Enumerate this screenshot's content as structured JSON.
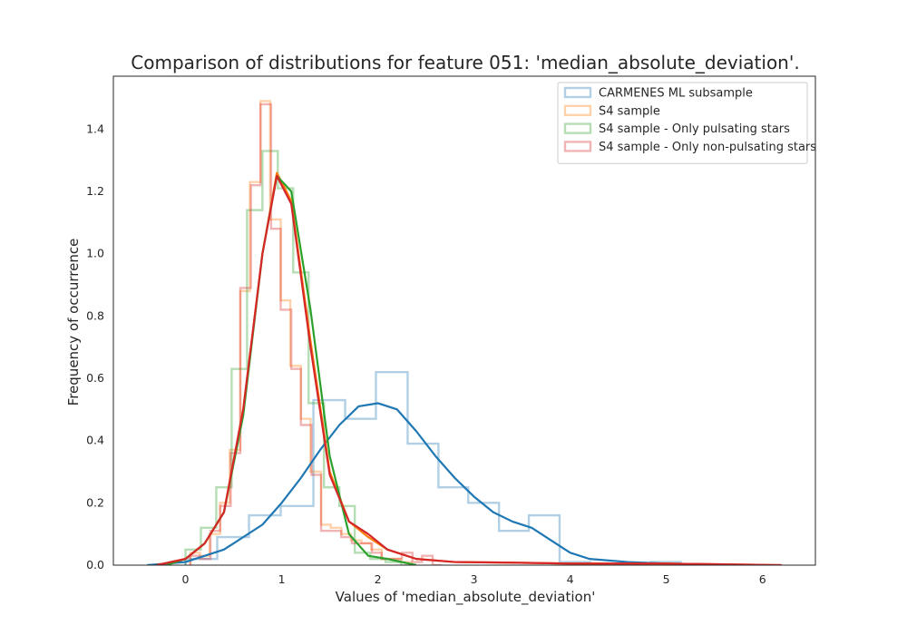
{
  "chart_data": {
    "type": "histogram+kde",
    "title": "Comparison of distributions for feature 051: 'median_absolute_deviation'.",
    "xlabel": "Values of 'median_absolute_deviation'",
    "ylabel": "Frequency of occurrence",
    "xlim": [
      -0.75,
      6.55
    ],
    "ylim": [
      0,
      1.57
    ],
    "xticks": [
      0,
      1,
      2,
      3,
      4,
      5,
      6
    ],
    "yticks": [
      0.0,
      0.2,
      0.4,
      0.6,
      0.8,
      1.0,
      1.2,
      1.4
    ],
    "grid": false,
    "legend_position": "top-right",
    "series": [
      {
        "name": "CARMENES ML subsample",
        "color": "#1f77b4",
        "hist": {
          "edges": [
            0.0,
            0.33,
            0.66,
            0.99,
            1.33,
            1.66,
            1.98,
            2.31,
            2.63,
            2.94,
            3.26,
            3.57,
            3.89,
            4.21,
            4.52,
            4.84,
            5.15
          ],
          "heights": [
            0.02,
            0.09,
            0.16,
            0.19,
            0.53,
            0.47,
            0.62,
            0.39,
            0.25,
            0.2,
            0.11,
            0.16,
            0.01,
            0.0,
            0.0,
            0.01
          ]
        },
        "kde": {
          "x": [
            -0.4,
            0.0,
            0.4,
            0.8,
            1.0,
            1.2,
            1.4,
            1.6,
            1.8,
            2.0,
            2.2,
            2.4,
            2.6,
            2.8,
            3.0,
            3.2,
            3.4,
            3.6,
            3.8,
            4.0,
            4.2,
            4.6,
            5.0,
            5.4
          ],
          "y": [
            0.0,
            0.01,
            0.05,
            0.13,
            0.2,
            0.28,
            0.37,
            0.45,
            0.51,
            0.52,
            0.5,
            0.43,
            0.35,
            0.28,
            0.22,
            0.17,
            0.14,
            0.12,
            0.08,
            0.04,
            0.02,
            0.01,
            0.005,
            0.0
          ]
        }
      },
      {
        "name": "S4 sample",
        "color": "#ff7f0e",
        "hist": {
          "edges": [
            0.05,
            0.15,
            0.25,
            0.36,
            0.46,
            0.57,
            0.67,
            0.78,
            0.88,
            0.99,
            1.09,
            1.2,
            1.3,
            1.41,
            1.51,
            1.62,
            1.72,
            1.83,
            1.93,
            2.04,
            2.14,
            2.24,
            2.35
          ],
          "heights": [
            0.04,
            0.03,
            0.1,
            0.2,
            0.37,
            0.88,
            1.23,
            1.49,
            1.11,
            0.85,
            0.64,
            0.47,
            0.3,
            0.13,
            0.12,
            0.1,
            0.08,
            0.07,
            0.05,
            0.02,
            0.02,
            0.01
          ]
        },
        "kde": {
          "x": [
            -0.3,
            0.0,
            0.2,
            0.4,
            0.6,
            0.8,
            0.95,
            1.1,
            1.3,
            1.5,
            1.7,
            1.9,
            2.1,
            2.4,
            2.8,
            3.4,
            4.0,
            5.0,
            6.2
          ],
          "y": [
            0.0,
            0.02,
            0.07,
            0.17,
            0.5,
            1.0,
            1.26,
            1.17,
            0.72,
            0.3,
            0.14,
            0.09,
            0.05,
            0.02,
            0.01,
            0.008,
            0.005,
            0.005,
            0.0
          ]
        }
      },
      {
        "name": "S4 sample - Only pulsating stars",
        "color": "#2ca02c",
        "hist": {
          "edges": [
            0.0,
            0.16,
            0.32,
            0.48,
            0.64,
            0.8,
            0.96,
            1.12,
            1.28,
            1.44,
            1.6,
            1.76,
            1.92,
            2.08,
            2.24,
            2.4
          ],
          "heights": [
            0.05,
            0.12,
            0.25,
            0.63,
            1.14,
            1.33,
            1.21,
            0.94,
            0.52,
            0.25,
            0.19,
            0.04,
            0.02,
            0.01,
            0.0
          ]
        },
        "kde": {
          "x": [
            -0.2,
            0.0,
            0.2,
            0.4,
            0.6,
            0.8,
            0.95,
            1.1,
            1.3,
            1.5,
            1.7,
            1.9,
            2.1,
            2.4
          ],
          "y": [
            0.0,
            0.02,
            0.07,
            0.17,
            0.48,
            1.0,
            1.25,
            1.2,
            0.82,
            0.35,
            0.1,
            0.03,
            0.02,
            0.0
          ]
        }
      },
      {
        "name": "S4 sample - Only non-pulsating stars",
        "color": "#d62728",
        "hist": {
          "edges": [
            0.05,
            0.15,
            0.26,
            0.36,
            0.47,
            0.57,
            0.68,
            0.78,
            0.89,
            0.99,
            1.1,
            1.2,
            1.31,
            1.41,
            1.52,
            1.62,
            1.73,
            1.83,
            1.94,
            2.04,
            2.15,
            2.25,
            2.36,
            2.46,
            2.57,
            2.67
          ],
          "heights": [
            0.03,
            0.02,
            0.11,
            0.19,
            0.36,
            0.89,
            1.22,
            1.48,
            1.08,
            0.82,
            0.63,
            0.45,
            0.29,
            0.11,
            0.11,
            0.09,
            0.07,
            0.07,
            0.04,
            0.02,
            0.02,
            0.04,
            0.01,
            0.03,
            0.0
          ]
        },
        "kde": {
          "x": [
            -0.3,
            0.0,
            0.2,
            0.4,
            0.6,
            0.8,
            0.95,
            1.1,
            1.3,
            1.5,
            1.7,
            1.9,
            2.1,
            2.4,
            2.8,
            3.4,
            4.0,
            5.0,
            6.2
          ],
          "y": [
            0.0,
            0.02,
            0.07,
            0.17,
            0.5,
            1.0,
            1.25,
            1.16,
            0.7,
            0.29,
            0.14,
            0.1,
            0.05,
            0.02,
            0.01,
            0.008,
            0.005,
            0.005,
            0.0
          ]
        }
      }
    ]
  }
}
